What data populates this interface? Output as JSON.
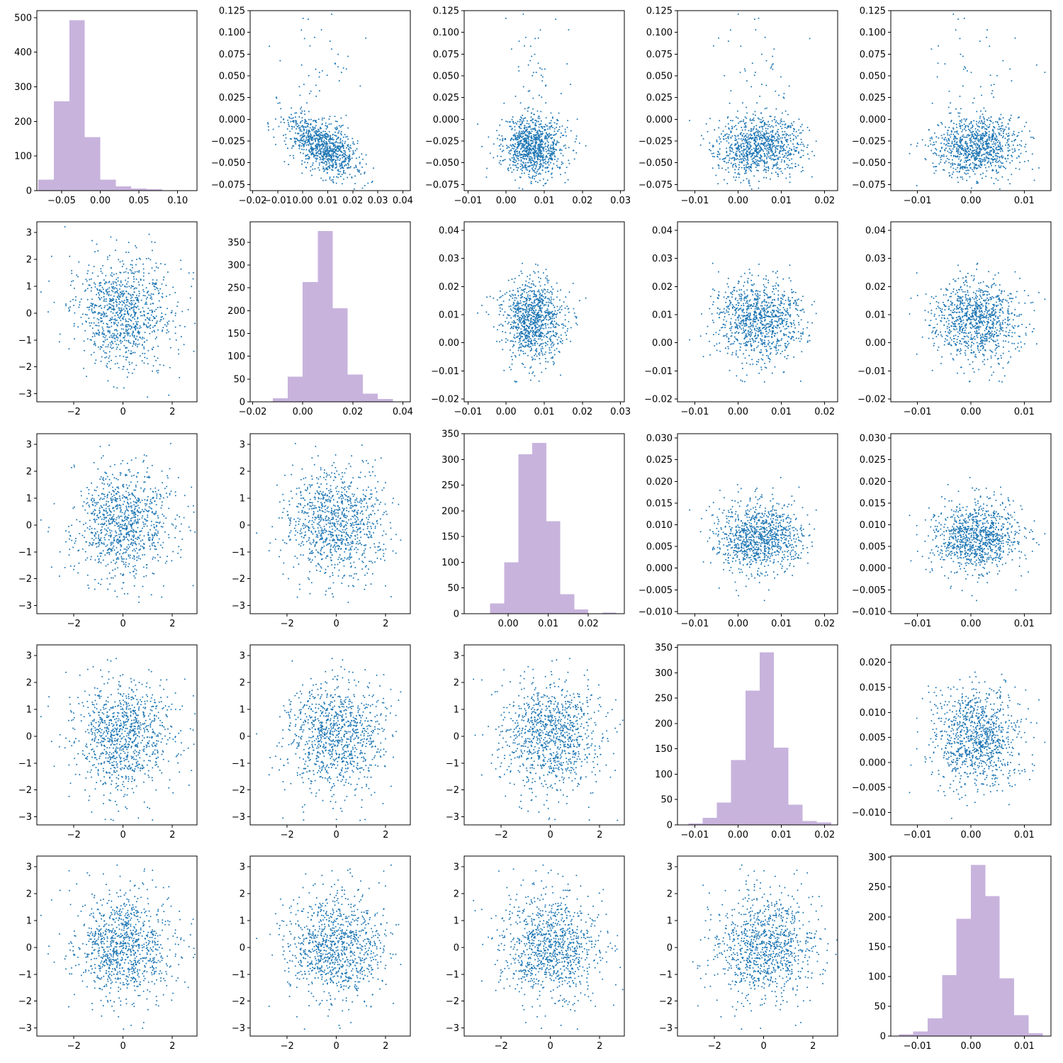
{
  "chart_data": {
    "type": "pair-plot",
    "grid": false,
    "colors": {
      "scatter": "#1f77b4",
      "histogram": "#c8b3dd"
    },
    "variables": [
      {
        "range": [
          -0.082,
          0.125
        ],
        "hist_range": [
          -0.082,
          0.125
        ],
        "ticks": [
          -0.075,
          -0.05,
          -0.025,
          0.0,
          0.025,
          0.05,
          0.075,
          0.1,
          0.125
        ],
        "tick_labels": [
          "−0.075",
          "−0.050",
          "−0.025",
          "0.000",
          "0.025",
          "0.050",
          "0.075",
          "0.100",
          "0.125"
        ],
        "hist_ticks": [
          -0.05,
          0.0,
          0.05,
          0.1
        ],
        "hist_tick_labels": [
          "−0.05",
          "0.00",
          "0.05",
          "0.10"
        ],
        "mean": -0.032,
        "sd": 0.017,
        "hist": {
          "edges": [
            -0.08,
            -0.06,
            -0.04,
            -0.02,
            0.0,
            0.02,
            0.04,
            0.06,
            0.08,
            0.1,
            0.12
          ],
          "counts": [
            32,
            258,
            492,
            155,
            32,
            12,
            6,
            4,
            1,
            1
          ],
          "ylim": [
            0,
            520
          ],
          "yticks": [
            0,
            100,
            200,
            300,
            400,
            500
          ]
        }
      },
      {
        "range": [
          -0.021,
          0.043
        ],
        "hist_range": [
          -0.021,
          0.043
        ],
        "ticks": [
          -0.02,
          -0.01,
          0.0,
          0.01,
          0.02,
          0.03,
          0.04
        ],
        "tick_labels": [
          "−0.02",
          "−0.01",
          "0.00",
          "0.01",
          "0.02",
          "0.03",
          "0.04"
        ],
        "hist_ticks": [
          -0.02,
          0.0,
          0.02,
          0.04
        ],
        "hist_tick_labels": [
          "−0.02",
          "0.00",
          "0.02",
          "0.04"
        ],
        "mean": 0.008,
        "sd": 0.007,
        "hist": {
          "edges": [
            -0.018,
            -0.012,
            -0.006,
            0.0,
            0.006,
            0.012,
            0.018,
            0.024,
            0.03,
            0.036,
            0.042
          ],
          "counts": [
            1,
            8,
            55,
            263,
            375,
            205,
            60,
            18,
            6,
            1
          ],
          "ylim": [
            0,
            395
          ],
          "yticks": [
            0,
            50,
            100,
            150,
            200,
            250,
            300,
            350
          ]
        }
      },
      {
        "range": [
          -0.011,
          0.031
        ],
        "hist_range": [
          -0.011,
          0.029
        ],
        "ticks": [
          -0.01,
          0.0,
          0.01,
          0.02,
          0.03
        ],
        "tick_labels": [
          "−0.01",
          "0.00",
          "0.01",
          "0.02",
          "0.03"
        ],
        "hist_ticks": [
          0.0,
          0.01,
          0.02
        ],
        "hist_tick_labels": [
          "0.00",
          "0.01",
          "0.02"
        ],
        "mean": 0.007,
        "sd": 0.004,
        "y_range": [
          -0.0105,
          0.031
        ],
        "y_ticks": [
          -0.01,
          -0.005,
          0.0,
          0.005,
          0.01,
          0.015,
          0.02,
          0.025,
          0.03
        ],
        "y_tick_labels": [
          "−0.010",
          "−0.005",
          "0.000",
          "0.005",
          "0.010",
          "0.015",
          "0.020",
          "0.025",
          "0.030"
        ],
        "hist": {
          "edges": [
            -0.008,
            -0.0045,
            -0.001,
            0.0025,
            0.006,
            0.0095,
            0.013,
            0.0165,
            0.02,
            0.0235,
            0.027
          ],
          "counts": [
            1,
            20,
            100,
            310,
            332,
            180,
            38,
            8,
            0,
            2
          ],
          "ylim": [
            0,
            350
          ],
          "yticks": [
            0,
            50,
            100,
            150,
            200,
            250,
            300,
            350
          ]
        }
      },
      {
        "range": [
          -0.014,
          0.023
        ],
        "hist_range": [
          -0.014,
          0.023
        ],
        "ticks": [
          -0.01,
          0.0,
          0.01,
          0.02
        ],
        "tick_labels": [
          "−0.01",
          "0.00",
          "0.01",
          "0.02"
        ],
        "hist_ticks": [
          -0.01,
          0.0,
          0.01,
          0.02
        ],
        "hist_tick_labels": [
          "−0.01",
          "0.00",
          "0.01",
          "0.02"
        ],
        "mean": 0.005,
        "sd": 0.005,
        "y_range": [
          -0.0125,
          0.0235
        ],
        "y_ticks": [
          -0.01,
          -0.005,
          0.0,
          0.005,
          0.01,
          0.015,
          0.02
        ],
        "y_tick_labels": [
          "−0.010",
          "−0.005",
          "0.000",
          "0.005",
          "0.010",
          "0.015",
          "0.020"
        ],
        "hist": {
          "edges": [
            -0.0115,
            -0.0082,
            -0.0049,
            -0.0016,
            0.0017,
            0.005,
            0.0083,
            0.0116,
            0.0149,
            0.0182,
            0.0215
          ],
          "counts": [
            3,
            14,
            44,
            128,
            265,
            340,
            152,
            40,
            8,
            5
          ],
          "ylim": [
            0,
            355
          ],
          "yticks": [
            0,
            50,
            100,
            150,
            200,
            250,
            300,
            350
          ]
        }
      },
      {
        "range": [
          -0.015,
          0.015
        ],
        "hist_range": [
          -0.015,
          0.015
        ],
        "ticks": [
          -0.01,
          0.0,
          0.01
        ],
        "tick_labels": [
          "−0.01",
          "0.00",
          "0.01"
        ],
        "hist_ticks": [
          -0.01,
          0.0,
          0.01
        ],
        "hist_tick_labels": [
          "−0.01",
          "0.00",
          "0.01"
        ],
        "mean": 0.001,
        "sd": 0.004,
        "hist": {
          "edges": [
            -0.0135,
            -0.0108,
            -0.0081,
            -0.0054,
            -0.0027,
            0.0,
            0.0027,
            0.0054,
            0.0081,
            0.0108,
            0.0135
          ],
          "counts": [
            3,
            8,
            30,
            102,
            197,
            287,
            235,
            97,
            35,
            5
          ],
          "ylim": [
            0,
            302
          ],
          "yticks": [
            0,
            50,
            100,
            150,
            200,
            250,
            300
          ]
        }
      }
    ],
    "lower_scatter": {
      "x_range": [
        -3.5,
        3.0
      ],
      "x_ticks": [
        -2,
        0,
        2
      ],
      "x_tick_labels": [
        "−2",
        "0",
        "2"
      ],
      "y_range": [
        -3.3,
        3.4
      ],
      "y_ticks": [
        -3,
        -2,
        -1,
        0,
        1,
        2,
        3
      ],
      "y_tick_labels": [
        "−3",
        "−2",
        "−1",
        "0",
        "1",
        "2",
        "3"
      ]
    },
    "points_per_panel": 1000
  }
}
